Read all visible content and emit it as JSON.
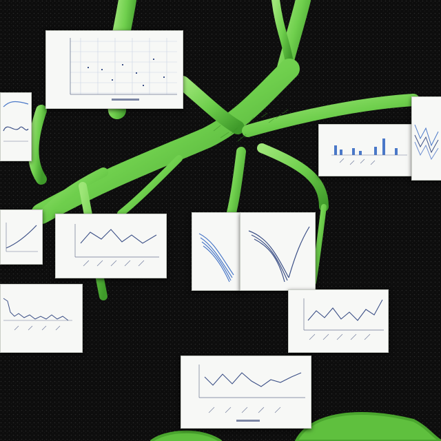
{
  "scene": {
    "description_colors": {
      "background": "#0b0b0b",
      "stem_light": "#8fe06a",
      "stem_dark": "#4aa52e",
      "card": "#f7f8f6",
      "chart_ink": "#3b4f86",
      "chart_accent": "#4a78c8",
      "grid": "#c9d3e4"
    },
    "cards": [
      {
        "name": "card-scatter-grid",
        "kind": "scatter"
      },
      {
        "name": "card-left-small-line",
        "kind": "line-small"
      },
      {
        "name": "card-right-bars",
        "kind": "bars"
      },
      {
        "name": "card-right-edge-lines",
        "kind": "multi-line"
      },
      {
        "name": "card-left-curve",
        "kind": "curve"
      },
      {
        "name": "card-center-line",
        "kind": "line"
      },
      {
        "name": "card-center-streams-a",
        "kind": "streams"
      },
      {
        "name": "card-center-streams-b",
        "kind": "streams"
      },
      {
        "name": "card-left-bars",
        "kind": "bars-dense"
      },
      {
        "name": "card-right-line",
        "kind": "line"
      },
      {
        "name": "card-bottom-line",
        "kind": "line-wave"
      }
    ]
  }
}
